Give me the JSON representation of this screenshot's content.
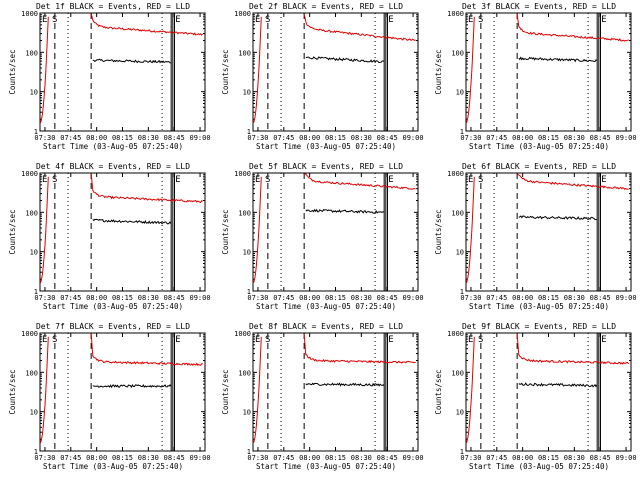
{
  "page": {
    "background": "#ffffff",
    "colors": {
      "events": "#000000",
      "lld": "#e00000",
      "axes": "#000000"
    }
  },
  "chart_data": [
    {
      "type": "line",
      "title": "Det 1f BLACK = Events, RED = LLD",
      "xlabel": "Start Time (03-Aug-05 07:25:40)",
      "ylabel": "Counts/sec",
      "yscale": "log",
      "ylim": [
        1,
        1000
      ],
      "x_tick_labels": [
        "07:30",
        "07:45",
        "08:00",
        "08:15",
        "08:30",
        "08:45",
        "09:00"
      ],
      "y_tick_labels": [
        "1",
        "10",
        "100",
        "1000"
      ],
      "markers": [
        "E",
        "S",
        "E"
      ],
      "series": [
        {
          "values": []
        },
        {
          "values": []
        }
      ]
    },
    {
      "type": "line",
      "title": "Det 2f BLACK = Events, RED = LLD",
      "xlabel": "Start Time (03-Aug-05 07:25:40)",
      "ylabel": "Counts/sec",
      "yscale": "log",
      "ylim": [
        1,
        1000
      ],
      "x_tick_labels": [
        "07:30",
        "07:45",
        "08:00",
        "08:15",
        "08:30",
        "08:45",
        "09:00"
      ],
      "y_tick_labels": [
        "1",
        "10",
        "100",
        "1000"
      ],
      "markers": [
        "E",
        "S",
        "E"
      ],
      "series": [
        {
          "values": []
        },
        {
          "values": []
        }
      ]
    },
    {
      "type": "line",
      "title": "Det 3f BLACK = Events, RED = LLD",
      "xlabel": "Start Time (03-Aug-05 07:25:40)",
      "ylabel": "Counts/sec",
      "yscale": "log",
      "ylim": [
        1,
        1000
      ],
      "x_tick_labels": [
        "07:30",
        "07:45",
        "08:00",
        "08:15",
        "08:30",
        "08:45",
        "09:00"
      ],
      "y_tick_labels": [
        "1",
        "10",
        "100",
        "1000"
      ],
      "markers": [
        "E",
        "S",
        "E"
      ],
      "series": [
        {
          "values": []
        },
        {
          "values": []
        }
      ]
    },
    {
      "type": "line",
      "title": "Det 4f BLACK = Events, RED = LLD",
      "xlabel": "Start Time (03-Aug-05 07:25:40)",
      "ylabel": "Counts/sec",
      "yscale": "log",
      "ylim": [
        1,
        1000
      ],
      "x_tick_labels": [
        "07:30",
        "07:45",
        "08:00",
        "08:15",
        "08:30",
        "08:45",
        "09:00"
      ],
      "y_tick_labels": [
        "1",
        "10",
        "100",
        "1000"
      ],
      "markers": [
        "E",
        "S",
        "E"
      ],
      "series": [
        {
          "values": []
        },
        {
          "values": []
        }
      ]
    },
    {
      "type": "line",
      "title": "Det 5f BLACK = Events, RED = LLD",
      "xlabel": "Start Time (03-Aug-05 07:25:40)",
      "ylabel": "Counts/sec",
      "yscale": "log",
      "ylim": [
        1,
        1000
      ],
      "x_tick_labels": [
        "07:30",
        "07:45",
        "08:00",
        "08:15",
        "08:30",
        "08:45",
        "09:00"
      ],
      "y_tick_labels": [
        "1",
        "10",
        "100",
        "1000"
      ],
      "markers": [
        "E",
        "S",
        "E"
      ],
      "series": [
        {
          "values": []
        },
        {
          "values": []
        }
      ]
    },
    {
      "type": "line",
      "title": "Det 6f BLACK = Events, RED = LLD",
      "xlabel": "Start Time (03-Aug-05 07:25:40)",
      "ylabel": "Counts/sec",
      "yscale": "log",
      "ylim": [
        1,
        1000
      ],
      "x_tick_labels": [
        "07:30",
        "07:45",
        "08:00",
        "08:15",
        "08:30",
        "08:45",
        "09:00"
      ],
      "y_tick_labels": [
        "1",
        "10",
        "100",
        "1000"
      ],
      "markers": [
        "E",
        "S",
        "E"
      ],
      "series": [
        {
          "values": []
        },
        {
          "values": []
        }
      ]
    },
    {
      "type": "line",
      "title": "Det 7f BLACK = Events, RED = LLD",
      "xlabel": "Start Time (03-Aug-05 07:25:40)",
      "ylabel": "Counts/sec",
      "yscale": "log",
      "ylim": [
        1,
        1000
      ],
      "x_tick_labels": [
        "07:30",
        "07:45",
        "08:00",
        "08:15",
        "08:30",
        "08:45",
        "09:00"
      ],
      "y_tick_labels": [
        "1",
        "10",
        "100",
        "1000"
      ],
      "markers": [
        "E",
        "S",
        "E"
      ],
      "series": [
        {
          "values": []
        },
        {
          "values": []
        }
      ]
    },
    {
      "type": "line",
      "title": "Det 8f BLACK = Events, RED = LLD",
      "xlabel": "Start Time (03-Aug-05 07:25:40)",
      "ylabel": "Counts/sec",
      "yscale": "log",
      "ylim": [
        1,
        1000
      ],
      "x_tick_labels": [
        "07:30",
        "07:45",
        "08:00",
        "08:15",
        "08:30",
        "08:45",
        "09:00"
      ],
      "y_tick_labels": [
        "1",
        "10",
        "100",
        "1000"
      ],
      "markers": [
        "E",
        "S",
        "E"
      ],
      "series": [
        {
          "values": []
        },
        {
          "values": []
        }
      ]
    },
    {
      "type": "line",
      "title": "Det 9f BLACK = Events, RED = LLD",
      "xlabel": "Start Time (03-Aug-05 07:25:40)",
      "ylabel": "Counts/sec",
      "yscale": "log",
      "ylim": [
        1,
        1000
      ],
      "x_tick_labels": [
        "07:30",
        "07:45",
        "08:00",
        "08:15",
        "08:30",
        "08:45",
        "09:00"
      ],
      "y_tick_labels": [
        "1",
        "10",
        "100",
        "1000"
      ],
      "markers": [
        "E",
        "S",
        "E"
      ],
      "series": [
        {
          "values": []
        },
        {
          "values": []
        }
      ]
    }
  ]
}
